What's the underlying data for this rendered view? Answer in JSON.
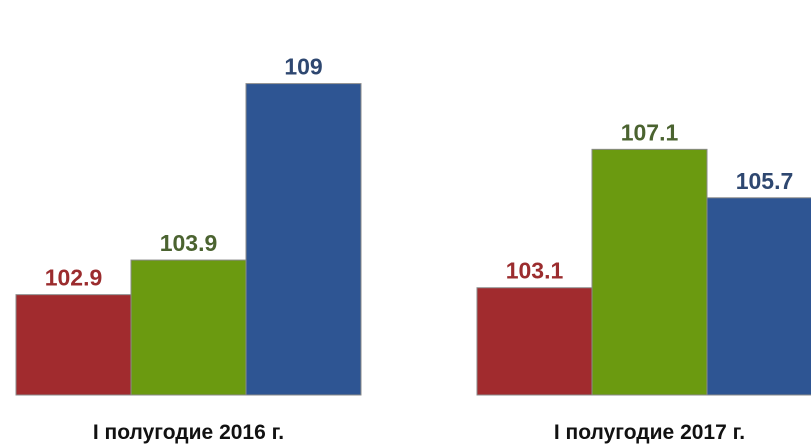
{
  "chart_data": {
    "type": "bar",
    "categories": [
      "I полугодие 2016 г.",
      "I полугодие 2017 г."
    ],
    "series": [
      {
        "color": "#A12B2E",
        "label_color": "#9B2C2E",
        "values": [
          102.9,
          103.1
        ]
      },
      {
        "color": "#6B9A10",
        "label_color": "#4B6330",
        "values": [
          103.9,
          107.1
        ]
      },
      {
        "color": "#2E5593",
        "label_color": "#2E4770",
        "values": [
          109,
          105.7
        ]
      }
    ],
    "data_labels": [
      [
        "102.9",
        "103.1"
      ],
      [
        "103.9",
        "107.1"
      ],
      [
        "109",
        "105.7"
      ]
    ],
    "ylim": [
      100,
      110
    ],
    "grid": false,
    "legend": "none"
  }
}
